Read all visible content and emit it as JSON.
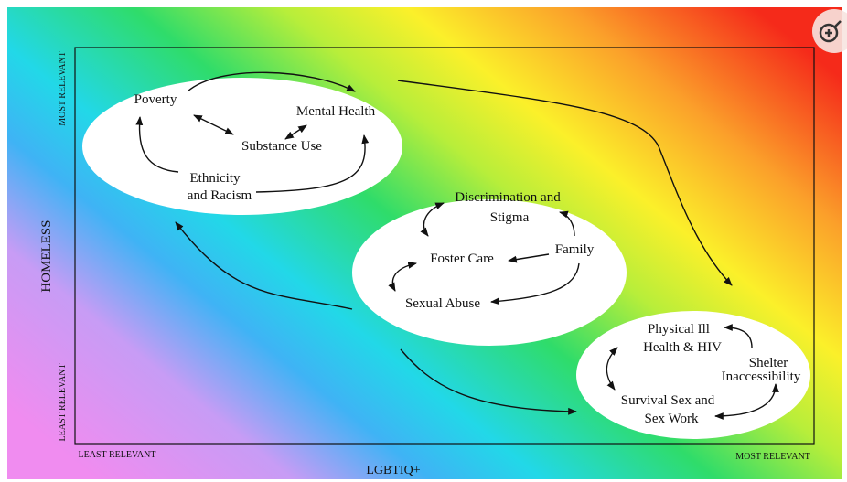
{
  "axes": {
    "y_label": "HOMELESS",
    "y_top": "MOST RELEVANT",
    "y_bottom": "LEAST RELEVANT",
    "x_label": "LGBTIQ+",
    "x_left": "LEAST RELEVANT",
    "x_right": "MOST RELEVANT"
  },
  "nodes": [
    {
      "lines": [
        "Poverty"
      ]
    },
    {
      "lines": [
        "Mental Health"
      ]
    },
    {
      "lines": [
        "Substance Use"
      ]
    },
    {
      "lines": [
        "Ethnicity",
        "and Racism"
      ]
    },
    {
      "lines": [
        "Discrimination and",
        "Stigma"
      ]
    },
    {
      "lines": [
        "Foster Care"
      ]
    },
    {
      "lines": [
        "Family"
      ]
    },
    {
      "lines": [
        "Sexual Abuse"
      ]
    },
    {
      "lines": [
        "Physical Ill",
        "Health & HIV"
      ]
    },
    {
      "lines": [
        "Shelter",
        "Inaccessibility"
      ]
    },
    {
      "lines": [
        "Survival Sex and",
        "Sex Work"
      ]
    }
  ]
}
